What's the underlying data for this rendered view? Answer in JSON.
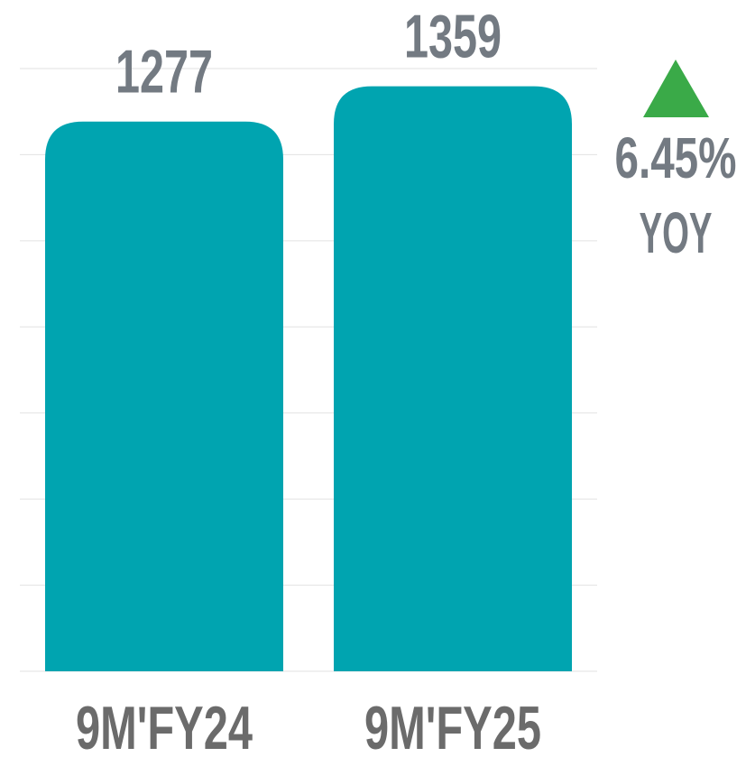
{
  "chart_data": {
    "type": "bar",
    "categories": [
      "9M'FY24",
      "9M'FY25"
    ],
    "values": [
      1277,
      1359
    ],
    "color": "#00a4b0",
    "ylim": [
      0,
      1400
    ],
    "yticks": [
      0,
      200,
      400,
      600,
      800,
      1000,
      1200,
      1400
    ],
    "grid": true,
    "annotations": [
      "6.45%",
      "YOY"
    ],
    "annotation_color": "#3aaa48"
  }
}
